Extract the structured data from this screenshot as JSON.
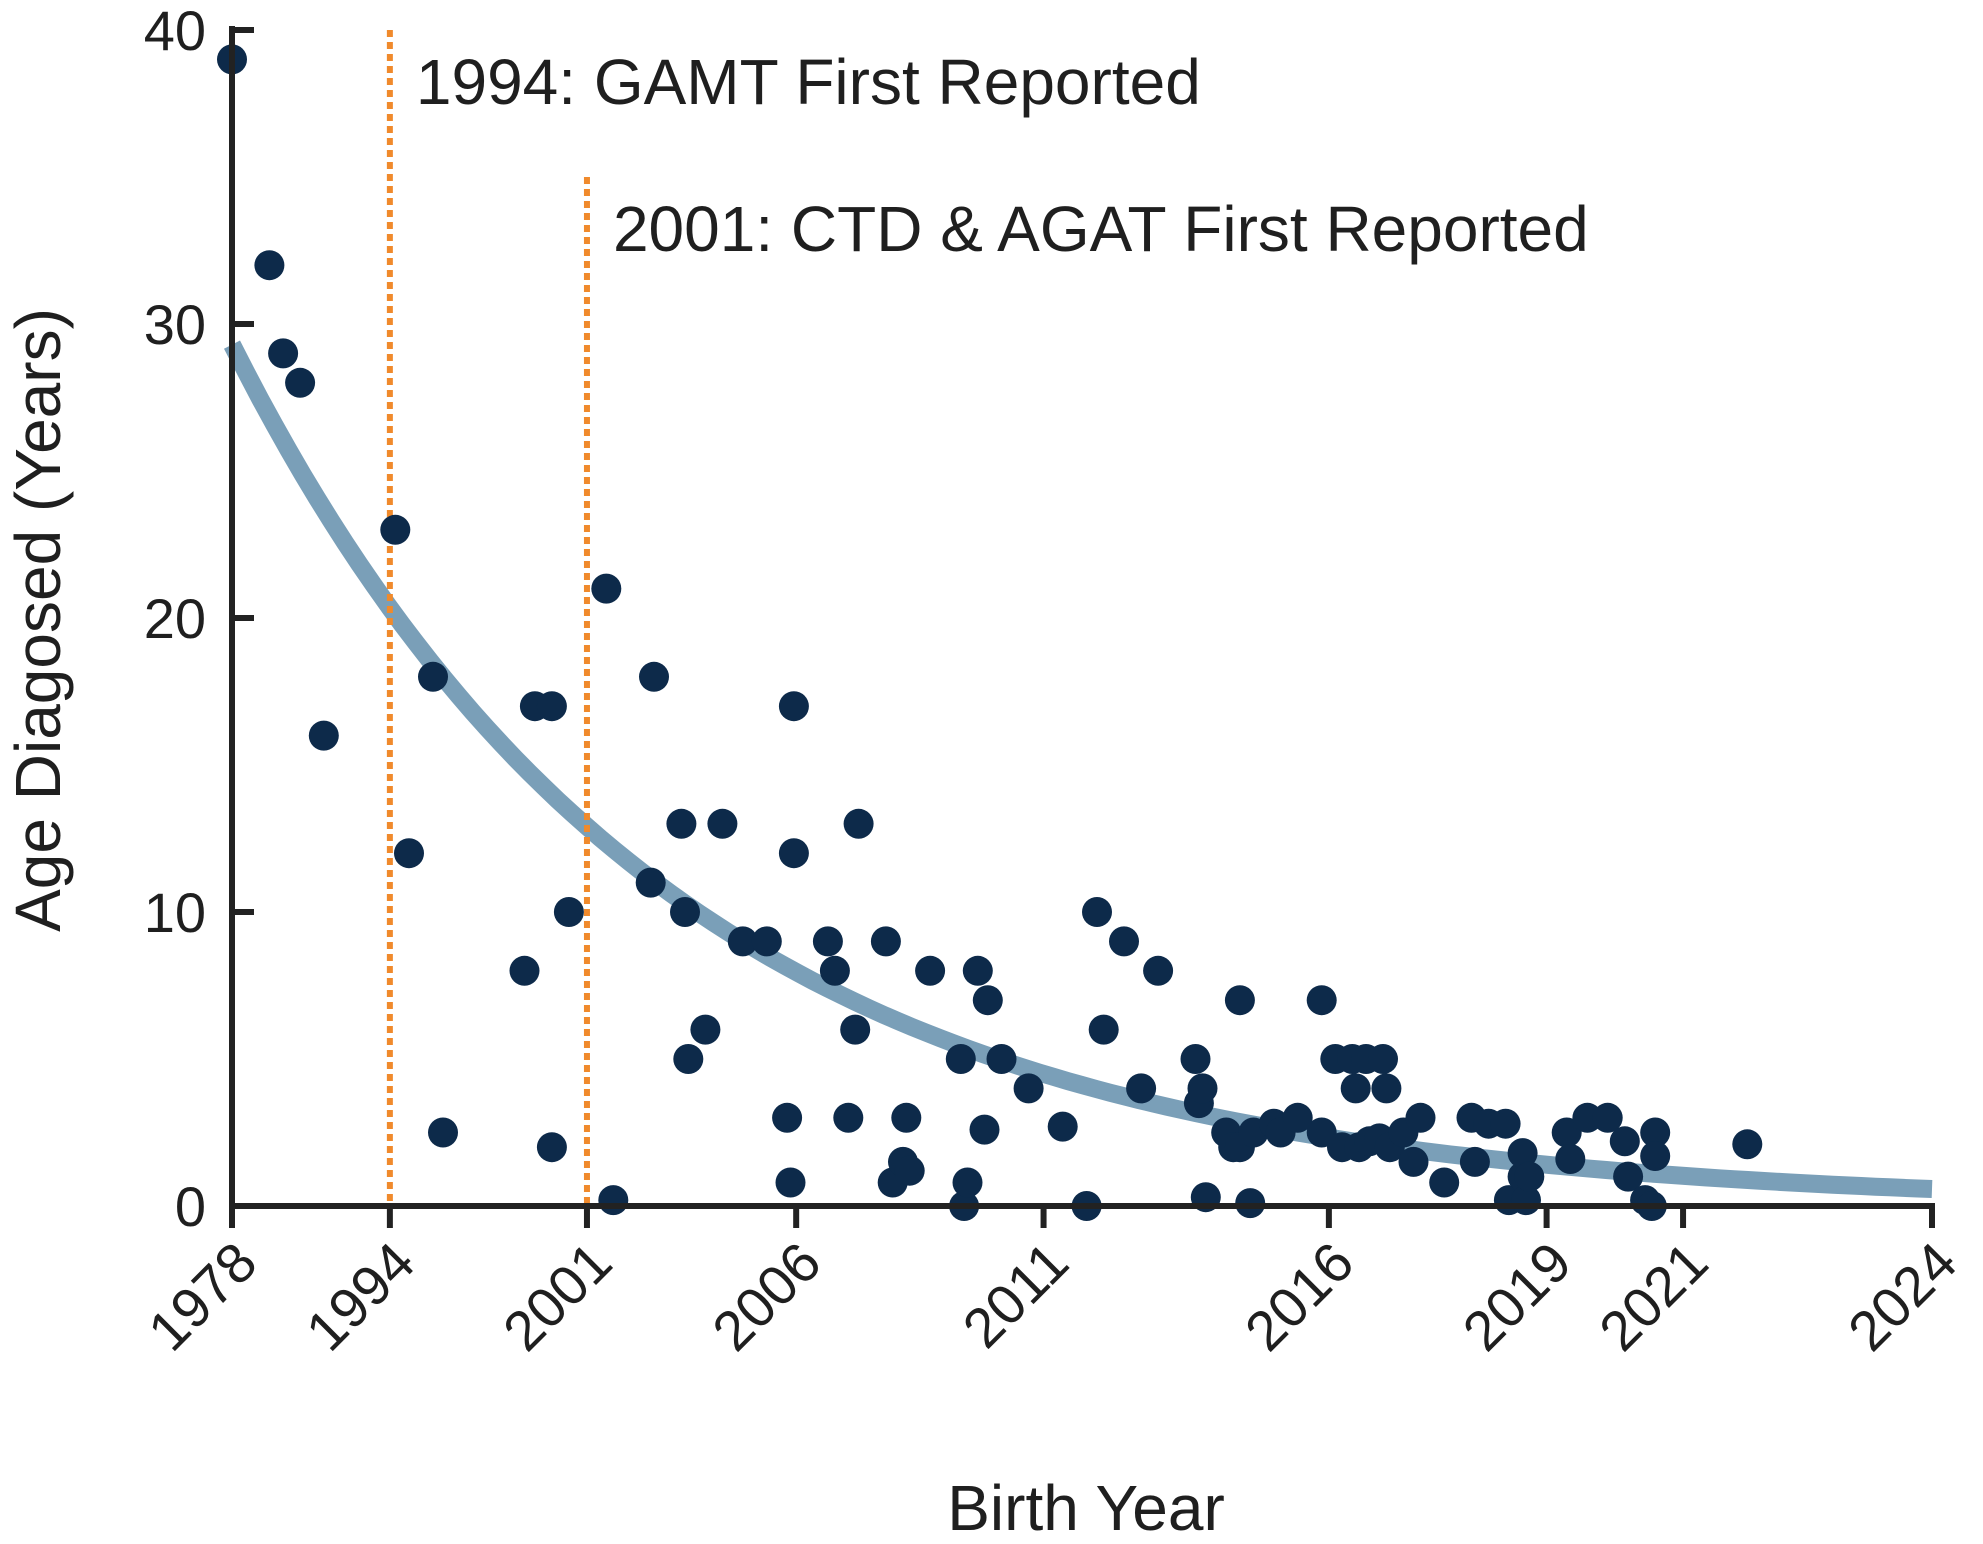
{
  "chart_data": {
    "type": "scatter",
    "title": "",
    "xlabel": "Birth Year",
    "ylabel": "Age Diagosed (Years)",
    "ylim": [
      0,
      40
    ],
    "yticks": [
      "0",
      "10",
      "20",
      "30",
      "40"
    ],
    "xticks": [
      {
        "label": "1978",
        "pos": 0
      },
      {
        "label": "1994",
        "pos": 6.12
      },
      {
        "label": "2001",
        "pos": 13.76
      },
      {
        "label": "2006",
        "pos": 21.87
      },
      {
        "label": "2011",
        "pos": 31.46
      },
      {
        "label": "2016",
        "pos": 42.52
      },
      {
        "label": "2019",
        "pos": 50.96
      },
      {
        "label": "2021",
        "pos": 56.25
      },
      {
        "label": "2024",
        "pos": 65.9
      }
    ],
    "xlim": [
      0,
      65.9
    ],
    "grid": false,
    "annotations": [
      {
        "label": "1994: GAMT First Reported",
        "x_pos": 6.12,
        "top_value": 40
      },
      {
        "label": "2001: CTD & AGAT First Reported",
        "x_pos": 13.76,
        "top_value": 35
      }
    ],
    "fit_curve": {
      "type": "exponential",
      "a": 29.3,
      "b": 0.0596,
      "x_start": 0,
      "x_end": 65.9
    },
    "series": [
      {
        "name": "patients",
        "points": [
          [
            0,
            39
          ],
          [
            1.45,
            32
          ],
          [
            1.98,
            29
          ],
          [
            2.64,
            28
          ],
          [
            3.56,
            16
          ],
          [
            6.33,
            23
          ],
          [
            6.86,
            12
          ],
          [
            7.79,
            18
          ],
          [
            8.18,
            2.5
          ],
          [
            11.34,
            8
          ],
          [
            11.74,
            17
          ],
          [
            12.4,
            17
          ],
          [
            12.4,
            2
          ],
          [
            13.06,
            10
          ],
          [
            14.51,
            21
          ],
          [
            14.78,
            0.2
          ],
          [
            16.23,
            11
          ],
          [
            16.36,
            18
          ],
          [
            17.42,
            13
          ],
          [
            17.56,
            10
          ],
          [
            17.69,
            5
          ],
          [
            18.35,
            6
          ],
          [
            19.01,
            13
          ],
          [
            19.8,
            9
          ],
          [
            20.73,
            9
          ],
          [
            21.52,
            3
          ],
          [
            21.65,
            0.8
          ],
          [
            21.78,
            17
          ],
          [
            21.78,
            12
          ],
          [
            23.1,
            9
          ],
          [
            23.37,
            8
          ],
          [
            23.89,
            3
          ],
          [
            24.16,
            6
          ],
          [
            24.29,
            13
          ],
          [
            25.35,
            9
          ],
          [
            25.61,
            0.8
          ],
          [
            26.01,
            1.5
          ],
          [
            26.14,
            3
          ],
          [
            26.27,
            1.2
          ],
          [
            27.06,
            8
          ],
          [
            28.25,
            5
          ],
          [
            28.38,
            0
          ],
          [
            28.51,
            0.8
          ],
          [
            28.91,
            8
          ],
          [
            29.17,
            2.6
          ],
          [
            29.3,
            7
          ],
          [
            29.83,
            5
          ],
          [
            30.88,
            4
          ],
          [
            32.2,
            2.7
          ],
          [
            33.13,
            0
          ],
          [
            33.53,
            10
          ],
          [
            33.79,
            6
          ],
          [
            34.58,
            9
          ],
          [
            35.24,
            4
          ],
          [
            35.9,
            8
          ],
          [
            37.35,
            5
          ],
          [
            37.48,
            3.5
          ],
          [
            37.62,
            4
          ],
          [
            37.75,
            0.3
          ],
          [
            38.54,
            2.5
          ],
          [
            38.81,
            2
          ],
          [
            39.07,
            2
          ],
          [
            39.07,
            7
          ],
          [
            39.47,
            0.1
          ],
          [
            39.6,
            2.5
          ],
          [
            40.39,
            2.8
          ],
          [
            40.65,
            2.5
          ],
          [
            41.31,
            3
          ],
          [
            42.24,
            2.5
          ],
          [
            42.24,
            7
          ],
          [
            42.77,
            5
          ],
          [
            43.03,
            2
          ],
          [
            43.43,
            5
          ],
          [
            43.56,
            4
          ],
          [
            43.69,
            2
          ],
          [
            43.96,
            5
          ],
          [
            44.09,
            2.2
          ],
          [
            44.48,
            2.3
          ],
          [
            44.62,
            5
          ],
          [
            44.75,
            4
          ],
          [
            44.88,
            2
          ],
          [
            45.41,
            2.5
          ],
          [
            45.8,
            1.5
          ],
          [
            46.07,
            3
          ],
          [
            46.99,
            0.8
          ],
          [
            48.05,
            3
          ],
          [
            48.18,
            1.5
          ],
          [
            48.71,
            2.8
          ],
          [
            49.37,
            2.8
          ],
          [
            49.5,
            0.2
          ],
          [
            50.03,
            1
          ],
          [
            50.03,
            1.8
          ],
          [
            50.16,
            0.2
          ],
          [
            50.29,
            1
          ],
          [
            51.74,
            2.5
          ],
          [
            51.88,
            1.6
          ],
          [
            52.54,
            3
          ],
          [
            53.33,
            3
          ],
          [
            53.99,
            2.2
          ],
          [
            54.12,
            1
          ],
          [
            54.78,
            0.2
          ],
          [
            55.04,
            0
          ],
          [
            55.17,
            2.5
          ],
          [
            55.17,
            1.7
          ],
          [
            58.74,
            2.1
          ]
        ]
      }
    ]
  },
  "colors": {
    "points": "#0d2a4a",
    "fit": "#7a9fb8",
    "vlines": "#f08a2c",
    "axis": "#222222"
  }
}
